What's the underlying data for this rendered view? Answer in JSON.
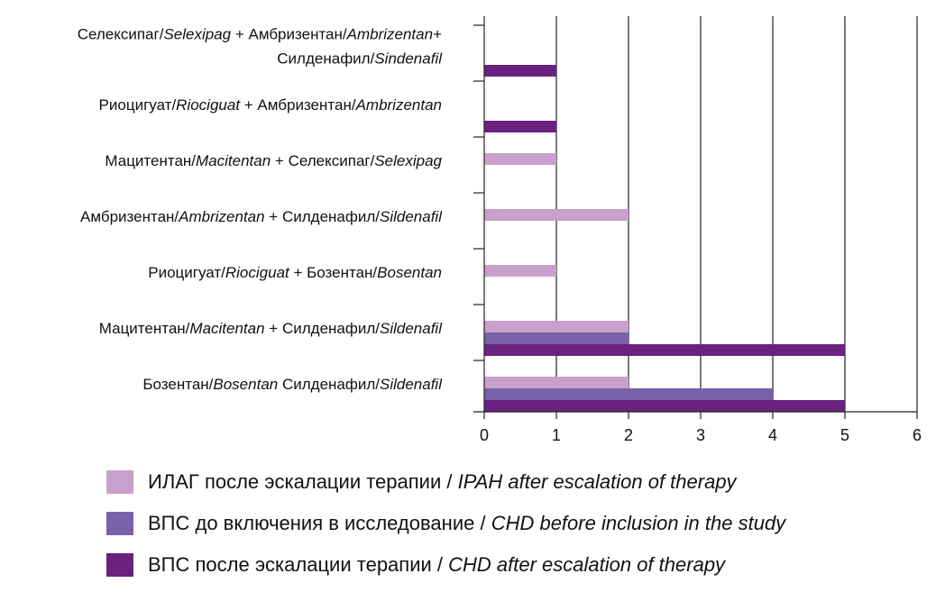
{
  "chart_data": {
    "type": "bar",
    "orientation": "horizontal",
    "xlim": [
      0,
      6
    ],
    "xticks": [
      "0",
      "1",
      "2",
      "3",
      "4",
      "5",
      "6"
    ],
    "grid": "vertical",
    "legend_position": "bottom",
    "categories": [
      {
        "lines": [
          [
            {
              "t": "Селексипаг/",
              "i": false
            },
            {
              "t": "Selexipag",
              "i": true
            },
            {
              "t": " + Амбризентан/",
              "i": false
            },
            {
              "t": "Ambrizentan",
              "i": true
            },
            {
              "t": "+",
              "i": false
            }
          ],
          [
            {
              "t": "Силденафил/",
              "i": false
            },
            {
              "t": "Sindenafil",
              "i": true
            }
          ]
        ]
      },
      {
        "lines": [
          [
            {
              "t": "Риоцигуат/",
              "i": false
            },
            {
              "t": "Riociguat",
              "i": true
            },
            {
              "t": " + Амбризентан/",
              "i": false
            },
            {
              "t": "Ambrizentan",
              "i": true
            }
          ]
        ]
      },
      {
        "lines": [
          [
            {
              "t": "Мацитентан/",
              "i": false
            },
            {
              "t": "Macitentan",
              "i": true
            },
            {
              "t": " + Селексипаг/",
              "i": false
            },
            {
              "t": "Selexipag",
              "i": true
            }
          ]
        ]
      },
      {
        "lines": [
          [
            {
              "t": "Амбризентан/",
              "i": false
            },
            {
              "t": "Ambrizentan",
              "i": true
            },
            {
              "t": " + Силденафил/",
              "i": false
            },
            {
              "t": "Sildenafil",
              "i": true
            }
          ]
        ]
      },
      {
        "lines": [
          [
            {
              "t": "Риоцигуат/",
              "i": false
            },
            {
              "t": "Riociguat",
              "i": true
            },
            {
              "t": " + Бозентан/",
              "i": false
            },
            {
              "t": "Bosentan",
              "i": true
            }
          ]
        ]
      },
      {
        "lines": [
          [
            {
              "t": "Мацитентан/",
              "i": false
            },
            {
              "t": "Macitentan",
              "i": true
            },
            {
              "t": " + Силденафил/",
              "i": false
            },
            {
              "t": "Sildenafil",
              "i": true
            }
          ]
        ]
      },
      {
        "lines": [
          [
            {
              "t": "Бозентан/",
              "i": false
            },
            {
              "t": "Bosentan",
              "i": true
            },
            {
              "t": "  Силденафил/",
              "i": false
            },
            {
              "t": "Sildenafil",
              "i": true
            }
          ]
        ]
      }
    ],
    "series": [
      {
        "name_parts": [
          {
            "t": "ИЛАГ после эскалации терапии / ",
            "i": false
          },
          {
            "t": "IPAH after escalation of therapy",
            "i": true
          }
        ],
        "color": "#c8a0cc",
        "values": [
          0,
          0,
          1,
          2,
          1,
          2,
          2
        ]
      },
      {
        "name_parts": [
          {
            "t": "ВПС до включения в исследование / ",
            "i": false
          },
          {
            "t": "CHD before inclusion in the study",
            "i": true
          }
        ],
        "color": "#7862a8",
        "values": [
          0,
          0,
          0,
          0,
          0,
          2,
          4
        ]
      },
      {
        "name_parts": [
          {
            "t": "ВПС после эскалации терапии / ",
            "i": false
          },
          {
            "t": "CHD after escalation of therapy",
            "i": true
          }
        ],
        "color": "#6a2180",
        "values": [
          1,
          1,
          0,
          0,
          0,
          5,
          5
        ]
      }
    ]
  }
}
